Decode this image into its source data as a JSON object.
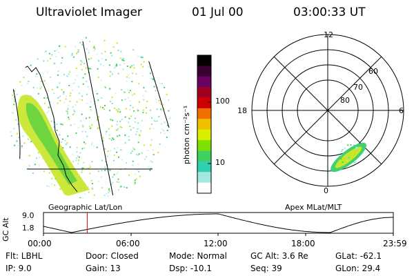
{
  "header": {
    "instrument": "Ultraviolet Imager",
    "date": "01 Jul 00",
    "time": "03:00:33 UT"
  },
  "panels": {
    "left_label": "Geographic Lat/Lon",
    "right_label": "Apex MLat/MLT"
  },
  "colorbar": {
    "unit_label": "photon cm⁻²s⁻¹",
    "ticks": [
      "100",
      "10"
    ],
    "colors": [
      "#000000",
      "#3a0030",
      "#6a0060",
      "#a00020",
      "#d00000",
      "#f07000",
      "#f0c000",
      "#d8f000",
      "#80e000",
      "#40d060",
      "#30d0b0",
      "#a0e8e0",
      "#ffffff"
    ]
  },
  "polar": {
    "mlt_labels": [
      "12",
      "18",
      "6",
      "0"
    ],
    "mlat_labels": [
      "60",
      "70",
      "80"
    ]
  },
  "altitude_plot": {
    "ylabel": "GC Alt",
    "yticks": [
      "9.0",
      "1.8"
    ],
    "xticks": [
      "00:00",
      "06:00",
      "12:00",
      "18:00",
      "23:59"
    ],
    "marker_time_hours": 3.0
  },
  "footer": {
    "flt": "Flt: LBHL",
    "ip": "IP:  9.0",
    "door": "Door: Closed",
    "gain": "Gain: 13",
    "mode": "Mode: Normal",
    "dsp": "Dsp:  -10.1",
    "gcalt": "GC Alt: 3.6 Re",
    "seq": "Seq: 39",
    "glat": "GLat: -62.1",
    "glon": "GLon:  29.4"
  }
}
